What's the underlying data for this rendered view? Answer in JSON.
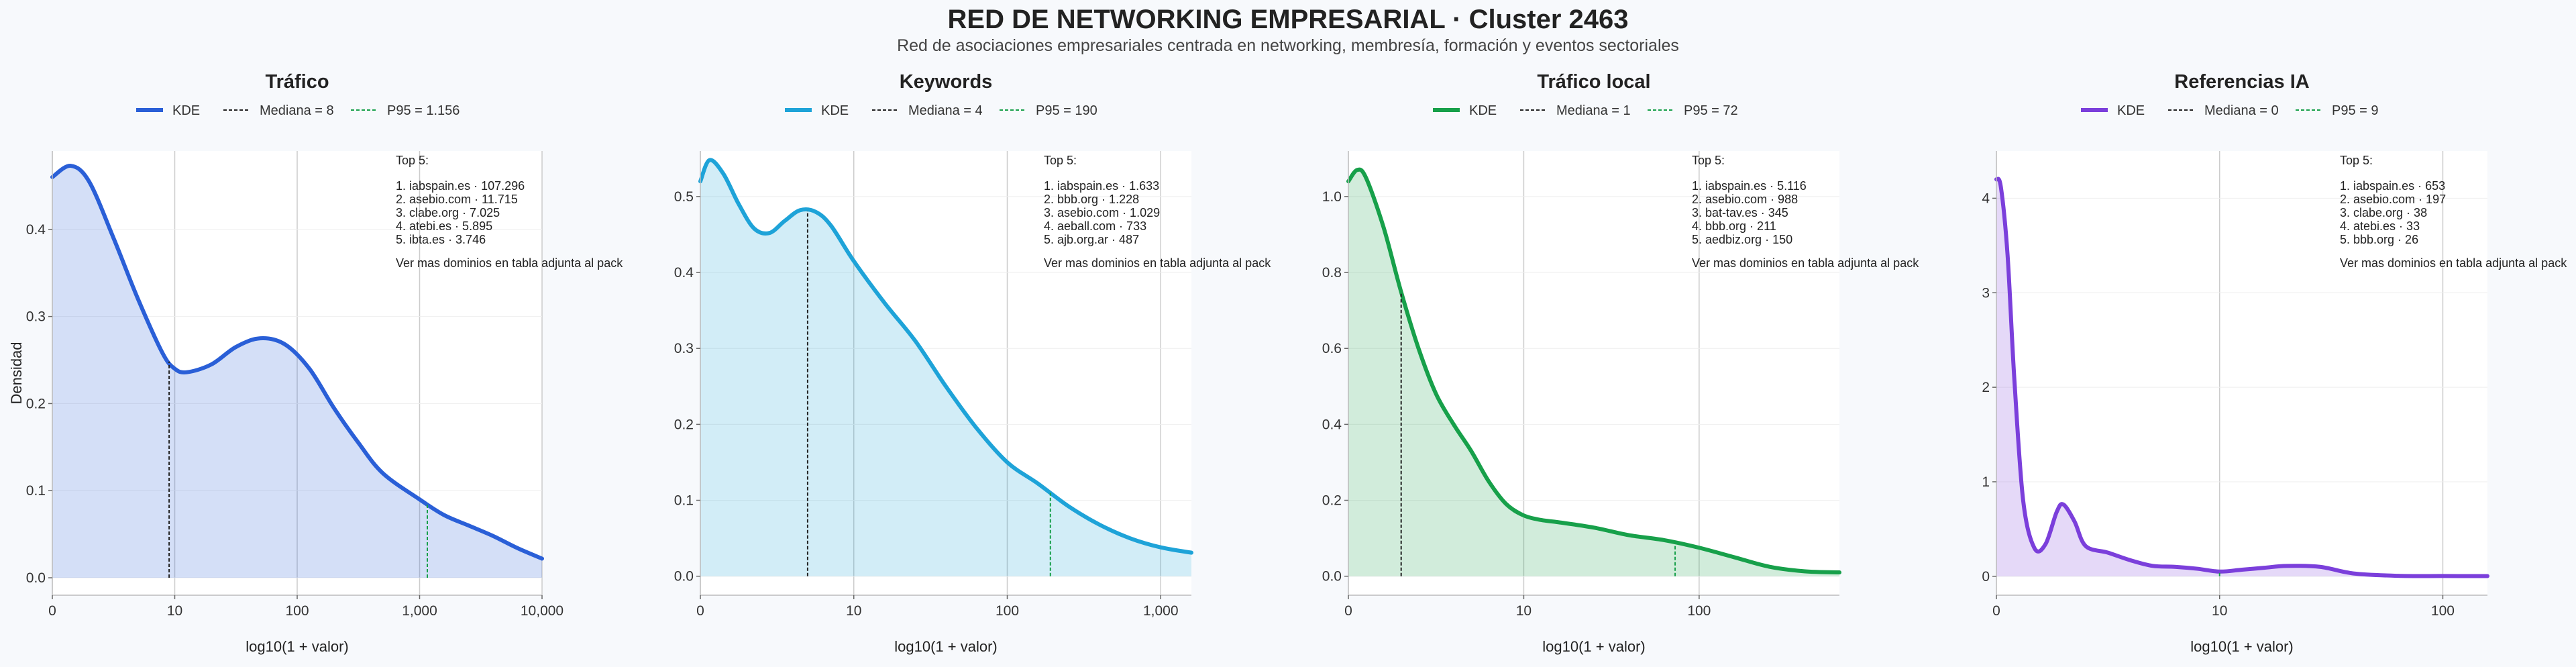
{
  "header": {
    "title": "RED DE NETWORKING EMPRESARIAL · Cluster 2463",
    "subtitle": "Red de asociaciones empresariales centrada en networking, membresía, formación y eventos sectoriales"
  },
  "colors": {
    "trafico": "#2a5fd7",
    "keywords": "#1ea3d8",
    "trafico_local": "#17a04a",
    "referencias_ia": "#7b3fdb",
    "median_line": "#222222",
    "grid": "#cccccc",
    "background": "#f7f9fc",
    "plot_background": "#ffffff"
  },
  "chart_data": [
    {
      "type": "area",
      "title": "Tráfico",
      "xlabel": "log10(1 + valor)",
      "ylabel": "Densidad",
      "xscale": "log10(1+x)",
      "xlim": [
        0,
        4.0
      ],
      "ylim": [
        -0.02,
        0.49
      ],
      "xticks": [
        0,
        1,
        2,
        3,
        4
      ],
      "xtick_labels": [
        "0",
        "10",
        "100",
        "1,000",
        "10,000"
      ],
      "yticks": [
        0,
        0.1,
        0.2,
        0.3,
        0.4
      ],
      "ytick_labels": [
        "0.0",
        "0.1",
        "0.2",
        "0.3",
        "0.4"
      ],
      "grid": "vertical major",
      "legend": {
        "placement": "top-center",
        "kde": "KDE",
        "median": "Mediana = 8",
        "p95": "P95 = 1.156"
      },
      "median_x": 0.954,
      "p95_x": 3.063,
      "p95_color": "#17a04a",
      "series": [
        {
          "name": "KDE",
          "x": [
            0,
            0.15,
            0.3,
            0.5,
            0.7,
            0.9,
            1.0,
            1.1,
            1.3,
            1.5,
            1.7,
            1.9,
            2.1,
            2.3,
            2.5,
            2.7,
            3.0,
            3.2,
            3.4,
            3.6,
            3.8,
            4.0
          ],
          "y": [
            0.46,
            0.473,
            0.455,
            0.39,
            0.32,
            0.258,
            0.24,
            0.236,
            0.245,
            0.265,
            0.275,
            0.268,
            0.24,
            0.195,
            0.155,
            0.12,
            0.09,
            0.072,
            0.06,
            0.048,
            0.034,
            0.022
          ]
        }
      ],
      "annotation": {
        "title": "Top 5:",
        "items": [
          "1. iabspain.es · 107.296",
          "2. asebio.com · 11.715",
          "3. clabe.org · 7.025",
          "4. atebi.es · 5.895",
          "5. ibta.es · 3.746"
        ],
        "footer": "Ver mas dominios en tabla adjunta al pack"
      }
    },
    {
      "type": "area",
      "title": "Keywords",
      "xlabel": "log10(1 + valor)",
      "ylabel": "",
      "xscale": "log10(1+x)",
      "xlim": [
        0,
        3.2
      ],
      "ylim": [
        -0.025,
        0.56
      ],
      "xticks": [
        0,
        1,
        2,
        3
      ],
      "xtick_labels": [
        "0",
        "10",
        "100",
        "1,000"
      ],
      "yticks": [
        0,
        0.1,
        0.2,
        0.3,
        0.4,
        0.5
      ],
      "ytick_labels": [
        "0.0",
        "0.1",
        "0.2",
        "0.3",
        "0.4",
        "0.5"
      ],
      "grid": "vertical major",
      "legend": {
        "placement": "top-center",
        "kde": "KDE",
        "median": "Mediana = 4",
        "p95": "P95 = 190"
      },
      "median_x": 0.699,
      "p95_x": 2.281,
      "p95_color": "#17a04a",
      "series": [
        {
          "name": "KDE",
          "x": [
            0,
            0.06,
            0.15,
            0.25,
            0.35,
            0.45,
            0.55,
            0.65,
            0.75,
            0.85,
            1.0,
            1.2,
            1.4,
            1.6,
            1.8,
            2.0,
            2.2,
            2.4,
            2.6,
            2.8,
            3.0,
            3.2
          ],
          "y": [
            0.52,
            0.548,
            0.53,
            0.49,
            0.458,
            0.452,
            0.468,
            0.482,
            0.48,
            0.462,
            0.415,
            0.36,
            0.31,
            0.25,
            0.195,
            0.15,
            0.122,
            0.092,
            0.068,
            0.05,
            0.038,
            0.031
          ]
        }
      ],
      "annotation": {
        "title": "Top 5:",
        "items": [
          "1. iabspain.es · 1.633",
          "2. bbb.org · 1.228",
          "3. asebio.com · 1.029",
          "4. aeball.com · 733",
          "5. ajb.org.ar · 487"
        ],
        "footer": "Ver mas dominios en tabla adjunta al pack"
      }
    },
    {
      "type": "area",
      "title": "Tráfico local",
      "xlabel": "log10(1 + valor)",
      "ylabel": "",
      "xscale": "log10(1+x)",
      "xlim": [
        0,
        2.8
      ],
      "ylim": [
        -0.05,
        1.12
      ],
      "xticks": [
        0,
        1,
        2
      ],
      "xtick_labels": [
        "0",
        "10",
        "100"
      ],
      "yticks": [
        0,
        0.2,
        0.4,
        0.6,
        0.8,
        1.0
      ],
      "ytick_labels": [
        "0.0",
        "0.2",
        "0.4",
        "0.6",
        "0.8",
        "1.0"
      ],
      "grid": "vertical major",
      "legend": {
        "placement": "top-center",
        "kde": "KDE",
        "median": "Mediana = 1",
        "p95": "P95 = 72"
      },
      "median_x": 0.301,
      "p95_x": 1.863,
      "p95_color": "#17a04a",
      "series": [
        {
          "name": "KDE",
          "x": [
            0,
            0.05,
            0.1,
            0.2,
            0.3,
            0.4,
            0.5,
            0.6,
            0.7,
            0.8,
            0.9,
            1.0,
            1.1,
            1.2,
            1.4,
            1.6,
            1.8,
            2.0,
            2.2,
            2.4,
            2.6,
            2.8
          ],
          "y": [
            1.04,
            1.07,
            1.05,
            0.92,
            0.75,
            0.6,
            0.48,
            0.4,
            0.33,
            0.25,
            0.19,
            0.16,
            0.148,
            0.142,
            0.128,
            0.108,
            0.095,
            0.075,
            0.05,
            0.025,
            0.013,
            0.01
          ]
        }
      ],
      "annotation": {
        "title": "Top 5:",
        "items": [
          "1. iabspain.es · 5.116",
          "2. asebio.com · 988",
          "3. bat-tav.es · 345",
          "4. bbb.org · 211",
          "5. aedbiz.org · 150"
        ],
        "footer": "Ver mas dominios en tabla adjunta al pack"
      }
    },
    {
      "type": "area",
      "title": "Referencias IA",
      "xlabel": "log10(1 + valor)",
      "ylabel": "",
      "xscale": "log10(1+x)",
      "xlim": [
        0,
        2.2
      ],
      "ylim": [
        -0.2,
        4.5
      ],
      "xticks": [
        0,
        1,
        2
      ],
      "xtick_labels": [
        "0",
        "10",
        "100"
      ],
      "yticks": [
        0,
        1,
        2,
        3,
        4
      ],
      "ytick_labels": [
        "0",
        "1",
        "2",
        "3",
        "4"
      ],
      "grid": "vertical major",
      "legend": {
        "placement": "top-center",
        "kde": "KDE",
        "median": "Mediana = 0",
        "p95": "P95 = 9"
      },
      "median_x": 0,
      "p95_x": 1.0,
      "p95_color": "#17a04a",
      "series": [
        {
          "name": "KDE",
          "x": [
            0,
            0.02,
            0.05,
            0.08,
            0.12,
            0.17,
            0.22,
            0.27,
            0.3,
            0.35,
            0.4,
            0.5,
            0.6,
            0.7,
            0.8,
            0.9,
            1.0,
            1.1,
            1.2,
            1.3,
            1.45,
            1.6,
            1.8,
            2.0,
            2.2
          ],
          "y": [
            4.2,
            4.12,
            3.4,
            2.1,
            0.8,
            0.3,
            0.34,
            0.68,
            0.76,
            0.58,
            0.32,
            0.25,
            0.17,
            0.11,
            0.1,
            0.08,
            0.05,
            0.07,
            0.09,
            0.11,
            0.1,
            0.03,
            0.005,
            0.003,
            0.002
          ]
        }
      ],
      "annotation": {
        "title": "Top 5:",
        "items": [
          "1. iabspain.es · 653",
          "2. asebio.com · 197",
          "3. clabe.org · 38",
          "4. atebi.es · 33",
          "5. bbb.org · 26"
        ],
        "footer": "Ver mas dominios en tabla adjunta al pack"
      }
    }
  ]
}
